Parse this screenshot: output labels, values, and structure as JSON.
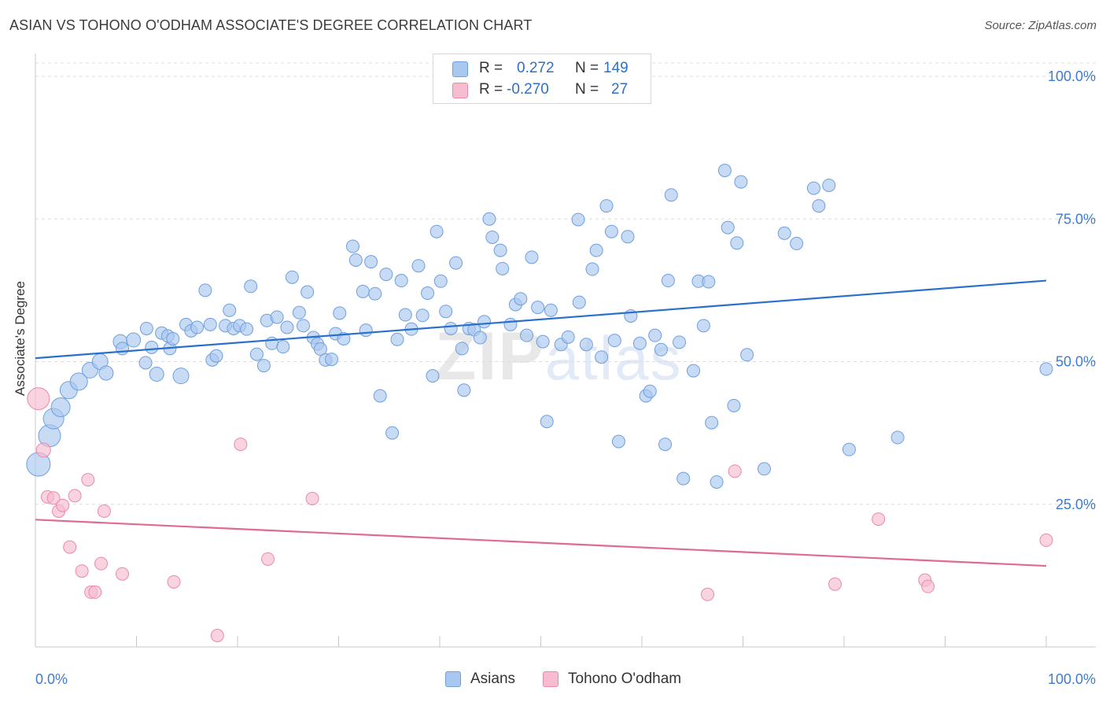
{
  "title": "ASIAN VS TOHONO O'ODHAM ASSOCIATE'S DEGREE CORRELATION CHART",
  "source": "Source: ZipAtlas.com",
  "watermark": {
    "zip": "ZIP",
    "atlas": "atlas"
  },
  "legend": {
    "rows": [
      {
        "r_label": "R =",
        "r_value": "0.272",
        "n_label": "N =",
        "n_value": "149",
        "color": "#a9c8f0"
      },
      {
        "r_label": "R =",
        "r_value": "-0.270",
        "n_label": "N =",
        "n_value": "27",
        "color": "#f7bcd0"
      }
    ]
  },
  "bottom_legend": {
    "asians": "Asians",
    "tohono": "Tohono O'odham"
  },
  "colors": {
    "blue_fill": "#a9c8f0",
    "blue_stroke": "#6f9fde",
    "blue_line": "#2b6fce",
    "pink_fill": "#f7bcd0",
    "pink_stroke": "#e98aab",
    "pink_line": "#e06a93",
    "axis_text": "#3f7bd0",
    "grid": "#dcdcdc"
  },
  "chart_data": {
    "type": "scatter",
    "title": "ASIAN VS TOHONO O'ODHAM ASSOCIATE'S DEGREE CORRELATION CHART",
    "xlabel": "",
    "ylabel": "Associate's Degree",
    "xlim": [
      0,
      100
    ],
    "ylim": [
      0,
      105
    ],
    "x_ticks": [
      "0.0%",
      "100.0%"
    ],
    "y_ticks": [
      {
        "value": 25,
        "label": "25.0%"
      },
      {
        "value": 50,
        "label": "50.0%"
      },
      {
        "value": 75,
        "label": "75.0%"
      },
      {
        "value": 100,
        "label": "100.0%"
      }
    ],
    "grid": true,
    "legend_position": "top-center",
    "series": [
      {
        "name": "Asians",
        "r": 0.272,
        "n": 149,
        "trend": {
          "x": [
            0,
            100
          ],
          "y": [
            50.6,
            64.2
          ]
        },
        "points": [
          [
            0.3,
            32,
            14
          ],
          [
            1.4,
            37,
            13
          ],
          [
            1.8,
            40,
            12
          ],
          [
            2.5,
            42,
            11
          ],
          [
            3.3,
            45,
            10
          ],
          [
            4.3,
            46.5,
            10
          ],
          [
            5.4,
            48.5,
            9
          ],
          [
            6.4,
            50,
            9
          ],
          [
            7.0,
            48,
            8
          ],
          [
            8.4,
            53.5,
            8
          ],
          [
            9.7,
            53.8,
            8
          ],
          [
            11.0,
            55.8,
            7
          ],
          [
            8.6,
            52.3,
            7
          ],
          [
            10.9,
            49.8,
            7
          ],
          [
            11.5,
            52.5,
            7
          ],
          [
            12.0,
            47.8,
            8
          ],
          [
            12.5,
            55,
            7
          ],
          [
            13.1,
            54.5,
            7
          ],
          [
            13.3,
            52.3,
            7
          ],
          [
            13.6,
            54,
            7
          ],
          [
            14.4,
            47.5,
            9
          ],
          [
            14.9,
            56.5,
            7
          ],
          [
            15.4,
            55.4,
            7
          ],
          [
            16.0,
            56,
            7
          ],
          [
            17.3,
            56.5,
            7
          ],
          [
            16.8,
            62.5,
            7
          ],
          [
            17.5,
            50.3,
            7
          ],
          [
            17.9,
            51,
            7
          ],
          [
            18.8,
            56.3,
            7
          ],
          [
            19.2,
            59,
            7
          ],
          [
            19.6,
            55.8,
            7
          ],
          [
            20.2,
            56.3,
            7
          ],
          [
            20.9,
            55.7,
            7
          ],
          [
            21.3,
            63.2,
            7
          ],
          [
            21.9,
            51.3,
            7
          ],
          [
            22.6,
            49.3,
            7
          ],
          [
            22.9,
            57.2,
            7
          ],
          [
            23.4,
            53.2,
            7
          ],
          [
            23.9,
            57.8,
            7
          ],
          [
            24.5,
            52.6,
            7
          ],
          [
            24.9,
            56,
            7
          ],
          [
            25.4,
            64.8,
            7
          ],
          [
            26.1,
            58.6,
            7
          ],
          [
            26.5,
            56.3,
            7
          ],
          [
            26.9,
            62.2,
            7
          ],
          [
            27.5,
            54.2,
            7
          ],
          [
            27.9,
            53.1,
            7
          ],
          [
            28.2,
            52.2,
            7
          ],
          [
            28.7,
            50.3,
            7
          ],
          [
            29.3,
            50.4,
            7
          ],
          [
            29.7,
            54.9,
            7
          ],
          [
            30.1,
            58.5,
            7
          ],
          [
            30.5,
            54,
            7
          ],
          [
            31.4,
            70.2,
            7
          ],
          [
            31.7,
            67.8,
            7
          ],
          [
            32.4,
            62.3,
            7
          ],
          [
            32.7,
            55.5,
            7
          ],
          [
            33.2,
            67.5,
            7
          ],
          [
            33.6,
            61.9,
            7
          ],
          [
            34.1,
            44,
            7
          ],
          [
            34.7,
            65.3,
            7
          ],
          [
            35.3,
            37.5,
            7
          ],
          [
            35.8,
            53.9,
            7
          ],
          [
            36.2,
            64.2,
            7
          ],
          [
            36.6,
            58.2,
            7
          ],
          [
            37.2,
            55.7,
            7
          ],
          [
            37.9,
            66.8,
            7
          ],
          [
            38.3,
            58.1,
            7
          ],
          [
            38.8,
            62,
            7
          ],
          [
            39.3,
            47.5,
            7
          ],
          [
            39.7,
            72.8,
            7
          ],
          [
            40.1,
            64.1,
            7
          ],
          [
            40.6,
            58.8,
            7
          ],
          [
            41.1,
            55.8,
            7
          ],
          [
            41.6,
            67.3,
            7
          ],
          [
            42.2,
            52.3,
            7
          ],
          [
            42.4,
            45,
            7
          ],
          [
            42.9,
            55.8,
            7
          ],
          [
            43.4,
            55.6,
            7
          ],
          [
            44.0,
            54.2,
            7
          ],
          [
            44.4,
            57,
            7
          ],
          [
            44.9,
            75,
            7
          ],
          [
            45.2,
            71.8,
            7
          ],
          [
            46.0,
            69.5,
            7
          ],
          [
            46.2,
            66.3,
            7
          ],
          [
            47.0,
            56.5,
            7
          ],
          [
            47.5,
            60,
            7
          ],
          [
            48.0,
            61,
            7
          ],
          [
            48.6,
            54.6,
            7
          ],
          [
            49.1,
            68.3,
            7
          ],
          [
            49.7,
            59.5,
            7
          ],
          [
            50.2,
            53.5,
            7
          ],
          [
            50.6,
            39.5,
            7
          ],
          [
            51.0,
            59,
            7
          ],
          [
            52.0,
            53,
            7
          ],
          [
            52.7,
            54.3,
            7
          ],
          [
            53.7,
            74.9,
            7
          ],
          [
            53.8,
            60.4,
            7
          ],
          [
            54.5,
            53,
            7
          ],
          [
            55.1,
            66.2,
            7
          ],
          [
            55.5,
            69.5,
            7
          ],
          [
            56.0,
            50.8,
            7
          ],
          [
            56.5,
            77.3,
            7
          ],
          [
            57.0,
            72.8,
            7
          ],
          [
            57.3,
            53.7,
            7
          ],
          [
            57.7,
            36,
            7
          ],
          [
            58.6,
            71.9,
            7
          ],
          [
            58.9,
            58,
            7
          ],
          [
            59.8,
            53.2,
            7
          ],
          [
            60.4,
            44,
            7
          ],
          [
            60.8,
            44.8,
            7
          ],
          [
            61.3,
            54.6,
            7
          ],
          [
            61.9,
            52.1,
            7
          ],
          [
            62.3,
            35.5,
            7
          ],
          [
            62.6,
            64.2,
            7
          ],
          [
            62.9,
            79.2,
            7
          ],
          [
            63.7,
            53.4,
            7
          ],
          [
            64.1,
            29.5,
            7
          ],
          [
            65.1,
            48.4,
            7
          ],
          [
            65.6,
            64.1,
            7
          ],
          [
            66.1,
            56.3,
            7
          ],
          [
            66.6,
            64,
            7
          ],
          [
            66.9,
            39.3,
            7
          ],
          [
            67.4,
            28.9,
            7
          ],
          [
            68.2,
            83.5,
            7
          ],
          [
            68.5,
            73.5,
            7
          ],
          [
            69.1,
            42.3,
            7
          ],
          [
            69.4,
            70.8,
            7
          ],
          [
            69.8,
            81.5,
            7
          ],
          [
            70.4,
            51.2,
            7
          ],
          [
            72.1,
            31.2,
            7
          ],
          [
            74.1,
            72.5,
            7
          ],
          [
            75.3,
            70.7,
            7
          ],
          [
            77.0,
            80.4,
            7
          ],
          [
            77.5,
            77.3,
            7
          ],
          [
            78.5,
            80.9,
            7
          ],
          [
            80.5,
            34.6,
            7
          ],
          [
            85.3,
            36.7,
            7
          ],
          [
            100.0,
            48.7,
            7
          ]
        ]
      },
      {
        "name": "Tohono O'odham",
        "r": -0.27,
        "n": 27,
        "trend": {
          "x": [
            0,
            100
          ],
          "y": [
            22.3,
            14.2
          ]
        },
        "points": [
          [
            0.3,
            43.5,
            13
          ],
          [
            0.8,
            34.5,
            8
          ],
          [
            1.2,
            26.3,
            7
          ],
          [
            1.8,
            26.1,
            7
          ],
          [
            2.3,
            23.8,
            7
          ],
          [
            2.7,
            24.8,
            7
          ],
          [
            3.4,
            17.5,
            7
          ],
          [
            3.9,
            26.5,
            7
          ],
          [
            4.6,
            13.3,
            7
          ],
          [
            5.2,
            29.3,
            7
          ],
          [
            5.5,
            9.6,
            7
          ],
          [
            5.9,
            9.6,
            7
          ],
          [
            6.5,
            14.6,
            7
          ],
          [
            6.8,
            23.8,
            7
          ],
          [
            8.6,
            12.8,
            7
          ],
          [
            13.7,
            11.4,
            7
          ],
          [
            18.0,
            2,
            7
          ],
          [
            20.3,
            35.5,
            7
          ],
          [
            23.0,
            15.4,
            7
          ],
          [
            27.4,
            26,
            7
          ],
          [
            66.5,
            9.2,
            7
          ],
          [
            69.2,
            30.8,
            7
          ],
          [
            79.1,
            11,
            7
          ],
          [
            83.4,
            22.4,
            7
          ],
          [
            88.0,
            11.7,
            7
          ],
          [
            88.3,
            10.6,
            7
          ],
          [
            100.0,
            18.7,
            7
          ]
        ]
      }
    ]
  }
}
